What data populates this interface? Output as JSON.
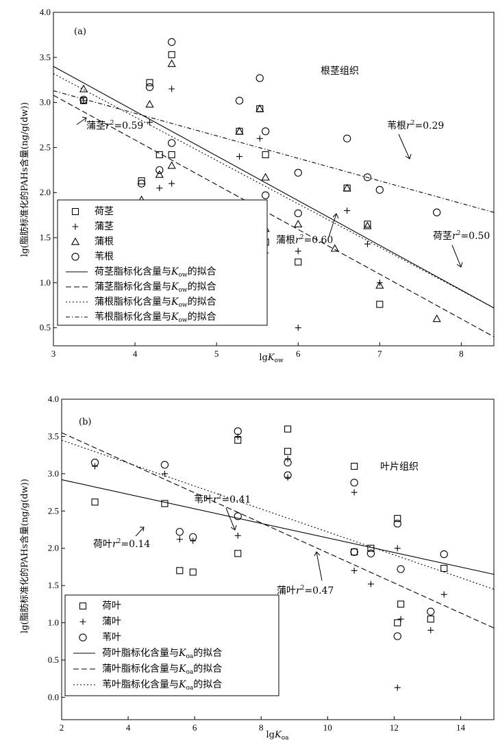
{
  "chart_data": [
    {
      "type": "scatter",
      "panel_label": "(a)",
      "region_label": "根茎组织",
      "xlabel": {
        "base": "lg",
        "italic": "K",
        "sub": "ow"
      },
      "ylabel": "lg(脂肪标准化的PAHs含量(ng/g(dw))",
      "xlim": [
        3,
        8.4
      ],
      "ylim": [
        0.3,
        4.0
      ],
      "xticks": [
        "3",
        "4",
        "5",
        "6",
        "7",
        "8"
      ],
      "yticks": [
        "0.5",
        "1.0",
        "1.5",
        "2.0",
        "2.5",
        "3.0",
        "3.5",
        "4.0"
      ],
      "xtick_values": [
        3,
        4,
        5,
        6,
        7,
        8
      ],
      "ytick_values": [
        0.5,
        1.0,
        1.5,
        2.0,
        2.5,
        3.0,
        3.5,
        4.0
      ],
      "series": [
        {
          "name": "荷茎",
          "marker": "square",
          "points": [
            [
              3.37,
              3.02
            ],
            [
              4.08,
              2.13
            ],
            [
              4.18,
              3.22
            ],
            [
              4.3,
              2.42
            ],
            [
              4.45,
              3.53
            ],
            [
              4.45,
              2.42
            ],
            [
              5.28,
              2.68
            ],
            [
              5.53,
              2.93
            ],
            [
              5.6,
              2.42
            ],
            [
              5.6,
              1.45
            ],
            [
              6.0,
              1.23
            ],
            [
              6.6,
              2.05
            ],
            [
              6.85,
              1.65
            ],
            [
              7.0,
              0.76
            ]
          ]
        },
        {
          "name": "蒲茎",
          "marker": "plus",
          "points": [
            [
              3.37,
              3.02
            ],
            [
              4.18,
              2.78
            ],
            [
              4.3,
              2.05
            ],
            [
              4.45,
              3.15
            ],
            [
              4.45,
              2.1
            ],
            [
              5.28,
              2.4
            ],
            [
              5.53,
              2.6
            ],
            [
              5.6,
              1.33
            ],
            [
              6.0,
              1.35
            ],
            [
              6.0,
              0.5
            ],
            [
              6.6,
              1.8
            ],
            [
              6.85,
              1.43
            ],
            [
              7.0,
              1.0
            ]
          ]
        },
        {
          "name": "蒲根",
          "marker": "triangle",
          "points": [
            [
              3.37,
              3.15
            ],
            [
              4.08,
              1.92
            ],
            [
              4.18,
              2.98
            ],
            [
              4.3,
              2.2
            ],
            [
              4.45,
              3.43
            ],
            [
              4.45,
              2.3
            ],
            [
              5.28,
              2.68
            ],
            [
              5.53,
              2.93
            ],
            [
              5.6,
              2.17
            ],
            [
              5.6,
              1.6
            ],
            [
              6.0,
              1.65
            ],
            [
              6.45,
              1.38
            ],
            [
              6.6,
              2.05
            ],
            [
              6.85,
              1.63
            ],
            [
              7.0,
              0.97
            ],
            [
              7.7,
              0.6
            ]
          ]
        },
        {
          "name": "苇根",
          "marker": "circle",
          "points": [
            [
              3.37,
              3.03
            ],
            [
              4.08,
              2.1
            ],
            [
              4.18,
              3.17
            ],
            [
              4.3,
              2.25
            ],
            [
              4.45,
              3.67
            ],
            [
              4.45,
              2.55
            ],
            [
              5.28,
              3.02
            ],
            [
              5.53,
              3.27
            ],
            [
              5.6,
              2.68
            ],
            [
              5.6,
              1.97
            ],
            [
              6.0,
              2.22
            ],
            [
              6.0,
              1.77
            ],
            [
              6.6,
              2.6
            ],
            [
              6.85,
              2.17
            ],
            [
              7.0,
              2.03
            ],
            [
              7.7,
              1.78
            ]
          ]
        }
      ],
      "fits": [
        {
          "name": "荷茎脂标化含量与Kow的拟合",
          "style": "solid",
          "x": [
            3,
            8.4
          ],
          "y": [
            3.4,
            0.72
          ]
        },
        {
          "name": "蒲茎脂标化含量与Kow的拟合",
          "style": "dashed",
          "x": [
            3,
            8.4
          ],
          "y": [
            3.08,
            0.4
          ]
        },
        {
          "name": "蒲根脂标化含量与Kow的拟合",
          "style": "dotted",
          "x": [
            3,
            8.4
          ],
          "y": [
            3.32,
            0.72
          ]
        },
        {
          "name": "苇根脂标化含量与Kow的拟合",
          "style": "dashdot",
          "x": [
            3,
            8.4
          ],
          "y": [
            3.13,
            1.78
          ]
        }
      ],
      "legend": {
        "placement": "bottom-left",
        "entries": [
          {
            "marker": "square",
            "label": "荷茎"
          },
          {
            "marker": "plus",
            "label": "蒲茎"
          },
          {
            "marker": "triangle",
            "label": "蒲根"
          },
          {
            "marker": "circle",
            "label": "苇根"
          },
          {
            "line": "solid",
            "label_pre": "荷茎脂标化含量与",
            "label_post": "的拟合",
            "k_sub": "ow"
          },
          {
            "line": "dashed",
            "label_pre": "蒲茎脂标化含量与",
            "label_post": "的拟合",
            "k_sub": "ow"
          },
          {
            "line": "dotted",
            "label_pre": "蒲根脂标化含量与",
            "label_post": "的拟合",
            "k_sub": "ow"
          },
          {
            "line": "dashdot",
            "label_pre": "苇根脂标化含量与",
            "label_post": "的拟合",
            "k_sub": "ow"
          }
        ]
      },
      "annotations": [
        {
          "name": "蒲茎",
          "r2": "=0.59"
        },
        {
          "name": "苇根",
          "r2": "=0.29"
        },
        {
          "name": "荷茎",
          "r2": "=0.50"
        },
        {
          "name": "蒲根",
          "r2": "=0.60"
        }
      ]
    },
    {
      "type": "scatter",
      "panel_label": "(b)",
      "region_label": "叶片组织",
      "xlabel": {
        "base": "lg",
        "italic": "K",
        "sub": "oa"
      },
      "ylabel": "lg(脂肪标准化的PAHs含量(ng/g(dw))",
      "xlim": [
        2,
        15
      ],
      "ylim": [
        -0.3,
        4.0
      ],
      "xticks": [
        "2",
        "4",
        "6",
        "8",
        "10",
        "12",
        "14"
      ],
      "yticks": [
        "0.0",
        "0.5",
        "1.0",
        "1.5",
        "2.0",
        "2.5",
        "3.0",
        "3.5",
        "4.0"
      ],
      "xtick_values": [
        2,
        4,
        6,
        8,
        10,
        12,
        14
      ],
      "ytick_values": [
        0.0,
        0.5,
        1.0,
        1.5,
        2.0,
        2.5,
        3.0,
        3.5,
        4.0
      ],
      "series": [
        {
          "name": "荷叶",
          "marker": "square",
          "points": [
            [
              3.0,
              2.62
            ],
            [
              5.1,
              2.6
            ],
            [
              5.55,
              1.7
            ],
            [
              5.95,
              1.68
            ],
            [
              7.3,
              1.93
            ],
            [
              7.3,
              3.45
            ],
            [
              8.8,
              3.6
            ],
            [
              8.8,
              3.3
            ],
            [
              10.8,
              3.1
            ],
            [
              10.8,
              1.95
            ],
            [
              11.3,
              2.0
            ],
            [
              12.1,
              2.4
            ],
            [
              12.1,
              1.0
            ],
            [
              12.2,
              1.25
            ],
            [
              13.1,
              1.05
            ],
            [
              13.5,
              1.73
            ]
          ]
        },
        {
          "name": "蒲叶",
          "marker": "plus",
          "points": [
            [
              3.0,
              3.1
            ],
            [
              5.1,
              3.0
            ],
            [
              5.55,
              2.12
            ],
            [
              5.95,
              2.1
            ],
            [
              7.3,
              2.17
            ],
            [
              7.3,
              3.5
            ],
            [
              8.8,
              3.2
            ],
            [
              8.8,
              2.95
            ],
            [
              10.8,
              2.75
            ],
            [
              10.8,
              1.7
            ],
            [
              11.3,
              1.52
            ],
            [
              12.1,
              2.0
            ],
            [
              12.1,
              0.13
            ],
            [
              12.2,
              1.05
            ],
            [
              13.1,
              0.9
            ],
            [
              13.5,
              1.38
            ]
          ]
        },
        {
          "name": "苇叶",
          "marker": "circle",
          "points": [
            [
              3.0,
              3.15
            ],
            [
              5.1,
              3.12
            ],
            [
              5.55,
              2.22
            ],
            [
              5.95,
              2.15
            ],
            [
              7.3,
              2.43
            ],
            [
              7.3,
              3.57
            ],
            [
              8.8,
              3.15
            ],
            [
              8.8,
              2.98
            ],
            [
              10.8,
              2.88
            ],
            [
              10.8,
              1.95
            ],
            [
              11.3,
              1.93
            ],
            [
              12.1,
              2.33
            ],
            [
              12.1,
              0.82
            ],
            [
              12.2,
              1.72
            ],
            [
              13.1,
              1.15
            ],
            [
              13.5,
              1.92
            ]
          ]
        }
      ],
      "fits": [
        {
          "name": "荷叶脂标化含量与Koa的拟合",
          "style": "solid",
          "x": [
            2,
            15
          ],
          "y": [
            2.92,
            1.65
          ]
        },
        {
          "name": "蒲叶脂标化含量与Koa的拟合",
          "style": "dashed",
          "x": [
            2,
            15
          ],
          "y": [
            3.55,
            0.93
          ]
        },
        {
          "name": "苇叶脂标化含量与Koa的拟合",
          "style": "dotted",
          "x": [
            2,
            15
          ],
          "y": [
            3.45,
            1.45
          ]
        }
      ],
      "legend": {
        "placement": "bottom-left",
        "entries": [
          {
            "marker": "square",
            "label": "荷叶"
          },
          {
            "marker": "plus",
            "label": "蒲叶"
          },
          {
            "marker": "circle",
            "label": "苇叶"
          },
          {
            "line": "solid",
            "label_pre": "荷叶脂标化含量与",
            "label_post": "的拟合",
            "k_sub": "oa"
          },
          {
            "line": "dashed",
            "label_pre": "蒲叶脂标化含量与",
            "label_post": "的拟合",
            "k_sub": "oa"
          },
          {
            "line": "dotted",
            "label_pre": "苇叶脂标化含量与",
            "label_post": "的拟合",
            "k_sub": "oa"
          }
        ]
      },
      "annotations": [
        {
          "name": "苇叶",
          "r2": "=0.41"
        },
        {
          "name": "荷叶",
          "r2": "=0.14"
        },
        {
          "name": "蒲叶",
          "r2": "=0.47"
        }
      ]
    }
  ]
}
